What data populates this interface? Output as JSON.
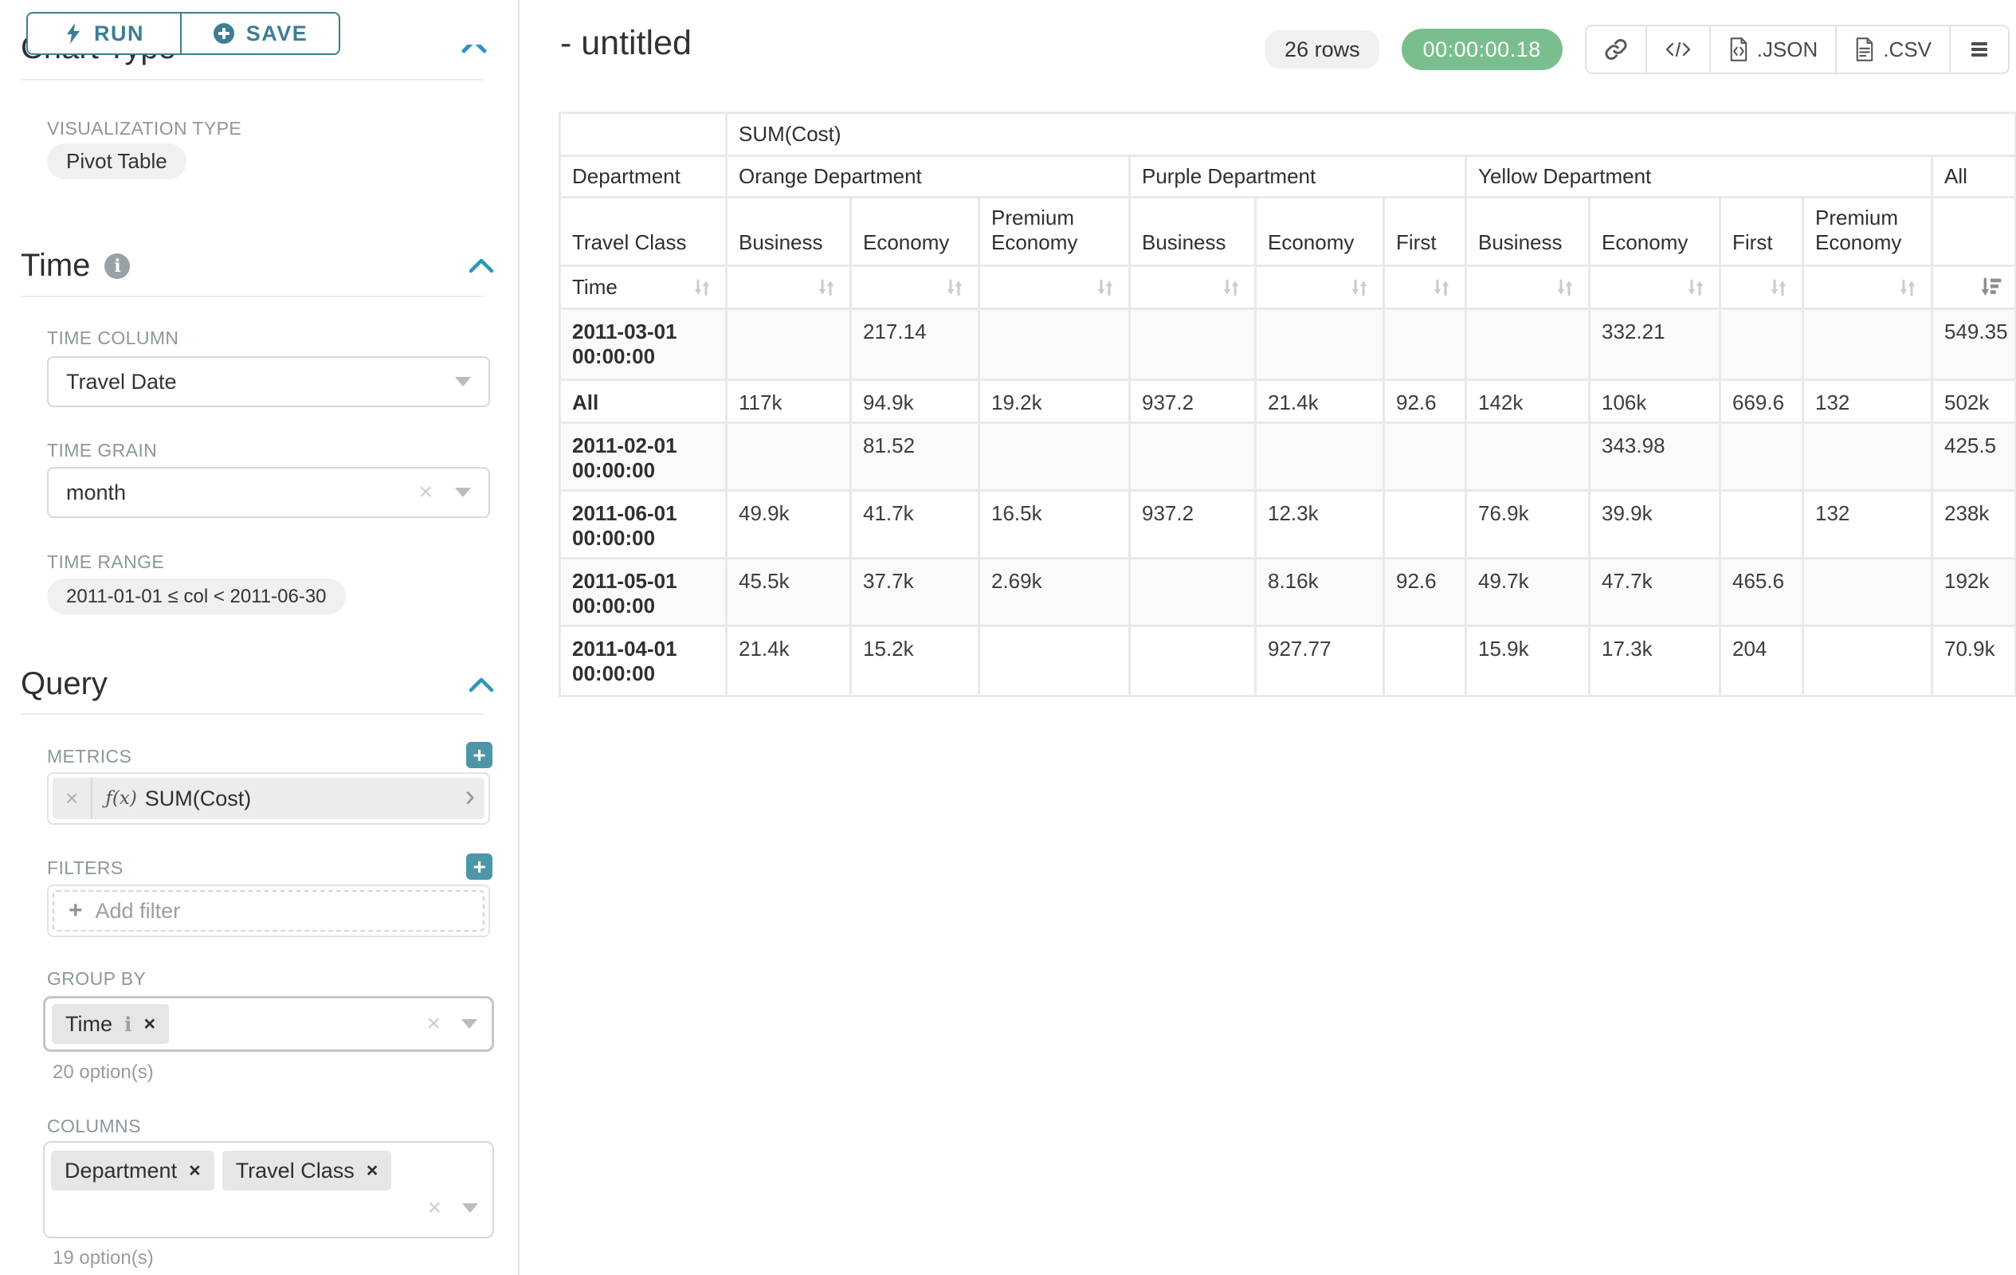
{
  "colors": {
    "accent_teal": "#3d7e93",
    "chevron_blue": "#2e96bc",
    "plus_teal": "#4d96a8",
    "timer_green": "#7abe8e",
    "label_gray": "#8c979c",
    "table_border": "#e9e9e9"
  },
  "icons": {
    "plus": "+",
    "close": "×",
    "chevron_right": "›",
    "info": "i",
    "code": "</>"
  },
  "toolbar": {
    "run": "RUN",
    "save": "SAVE"
  },
  "sidebar": {
    "chart_type_heading": "Chart Type",
    "visualization": {
      "label": "VISUALIZATION TYPE",
      "value": "Pivot Table"
    },
    "time": {
      "title": "Time",
      "column_label": "TIME COLUMN",
      "column_value": "Travel Date",
      "grain_label": "TIME GRAIN",
      "grain_value": "month",
      "range_label": "TIME RANGE",
      "range_value": "2011-01-01 ≤ col < 2011-06-30"
    },
    "query": {
      "title": "Query",
      "metrics": {
        "label": "METRICS",
        "fx": "ƒ(x)",
        "value": "SUM(Cost)"
      },
      "filters": {
        "label": "FILTERS",
        "placeholder": "Add filter"
      },
      "group_by": {
        "label": "GROUP BY",
        "tags": [
          {
            "text": "Time",
            "has_info": true
          }
        ],
        "hint": "20 option(s)"
      },
      "columns": {
        "label": "COLUMNS",
        "tags": [
          {
            "text": "Department"
          },
          {
            "text": "Travel Class"
          }
        ],
        "hint": "19 option(s)"
      }
    }
  },
  "main": {
    "title": "- untitled",
    "row_count": "26 rows",
    "timer": "00:00:00.18",
    "export_buttons": {
      "json": ".JSON",
      "csv": ".CSV"
    }
  },
  "pivot_table": {
    "metric_header": "SUM(Cost)",
    "col_dim1_label": "Department",
    "col_dim2_label": "Travel Class",
    "row_dim_label": "Time",
    "col_groups": [
      {
        "label": "Orange Department",
        "children": [
          "Business",
          "Economy",
          "Premium Economy"
        ]
      },
      {
        "label": "Purple Department",
        "children": [
          "Business",
          "Economy",
          "First"
        ]
      },
      {
        "label": "Yellow Department",
        "children": [
          "Business",
          "Economy",
          "First",
          "Premium Economy"
        ]
      },
      {
        "label": "All",
        "children": [
          ""
        ]
      }
    ],
    "rows": [
      {
        "label": "2011-03-01 00:00:00",
        "values": [
          "",
          "217.14",
          "",
          "",
          "",
          "",
          "",
          "332.21",
          "",
          "",
          "549.35"
        ]
      },
      {
        "label": "All",
        "values": [
          "117k",
          "94.9k",
          "19.2k",
          "937.2",
          "21.4k",
          "92.6",
          "142k",
          "106k",
          "669.6",
          "132",
          "502k"
        ]
      },
      {
        "label": "2011-02-01 00:00:00",
        "values": [
          "",
          "81.52",
          "",
          "",
          "",
          "",
          "",
          "343.98",
          "",
          "",
          "425.5"
        ]
      },
      {
        "label": "2011-06-01 00:00:00",
        "values": [
          "49.9k",
          "41.7k",
          "16.5k",
          "937.2",
          "12.3k",
          "",
          "76.9k",
          "39.9k",
          "",
          "132",
          "238k"
        ]
      },
      {
        "label": "2011-05-01 00:00:00",
        "values": [
          "45.5k",
          "37.7k",
          "2.69k",
          "",
          "8.16k",
          "92.6",
          "49.7k",
          "47.7k",
          "465.6",
          "",
          "192k"
        ]
      },
      {
        "label": "2011-04-01 00:00:00",
        "values": [
          "21.4k",
          "15.2k",
          "",
          "",
          "927.77",
          "",
          "15.9k",
          "17.3k",
          "204",
          "",
          "70.9k"
        ]
      }
    ]
  }
}
